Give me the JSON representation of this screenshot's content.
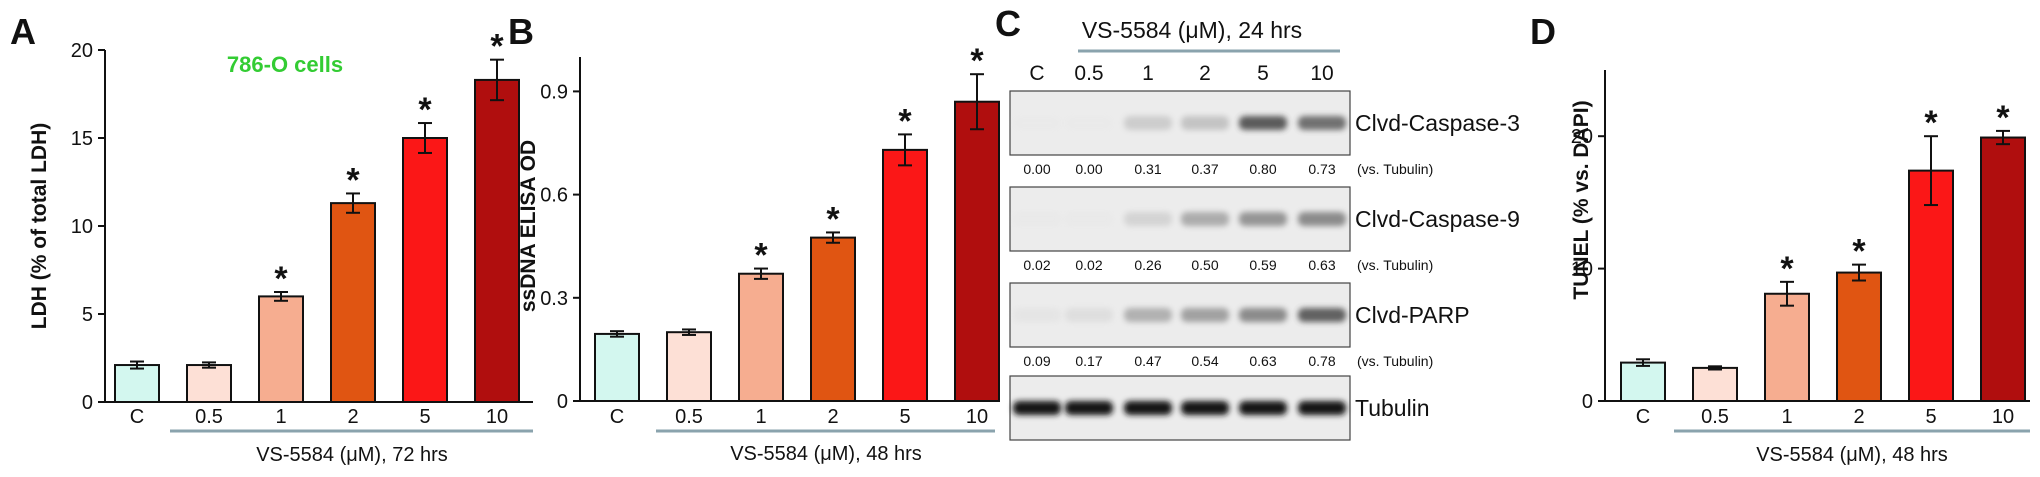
{
  "colors": [
    "#d3f7ef",
    "#fde0d6",
    "#f6ad90",
    "#e05512",
    "#fb1717",
    "#b00e0e"
  ],
  "chart_data": [
    {
      "type": "bar",
      "panel": "A",
      "annotation": "786-O cells",
      "ylabel": "LDH (% of total LDH)",
      "xlabel": "VS-5584 (μM), 72 hrs",
      "categories": [
        "C",
        "0.5",
        "1",
        "2",
        "5",
        "10"
      ],
      "values": [
        2.1,
        2.1,
        6.0,
        11.3,
        15.0,
        18.3
      ],
      "errors": [
        0.2,
        0.15,
        0.25,
        0.55,
        0.85,
        1.15
      ],
      "significant": [
        false,
        false,
        true,
        true,
        true,
        true
      ],
      "marker": "*",
      "ylim": [
        0,
        20
      ],
      "yticks": [
        "0",
        "5",
        "10",
        "15",
        "20"
      ],
      "ytick_values": [
        0,
        5,
        10,
        15,
        20
      ]
    },
    {
      "type": "bar",
      "panel": "B",
      "ylabel": "ssDNA ELISA OD",
      "xlabel": "VS-5584 (μM), 48 hrs",
      "categories": [
        "C",
        "0.5",
        "1",
        "2",
        "5",
        "10"
      ],
      "values": [
        0.195,
        0.2,
        0.37,
        0.475,
        0.73,
        0.87
      ],
      "errors": [
        0.008,
        0.008,
        0.015,
        0.015,
        0.045,
        0.08
      ],
      "significant": [
        false,
        false,
        true,
        true,
        true,
        true
      ],
      "marker": "*",
      "ylim": [
        0,
        1.0
      ],
      "yticks": [
        "0",
        "0.3",
        "0.6",
        "0.9"
      ],
      "ytick_values": [
        0,
        0.3,
        0.6,
        0.9
      ]
    },
    {
      "type": "bar",
      "panel": "D",
      "ylabel": "TUNEL (% vs. DAPI)",
      "xlabel": "VS-5584 (μM), 48 hrs",
      "categories": [
        "C",
        "0.5",
        "1",
        "2",
        "5",
        "10"
      ],
      "values": [
        2.9,
        2.5,
        8.1,
        9.7,
        17.4,
        19.9
      ],
      "errors": [
        0.25,
        0.12,
        0.9,
        0.6,
        2.6,
        0.5
      ],
      "significant": [
        false,
        false,
        true,
        true,
        true,
        true
      ],
      "marker": "*",
      "ylim": [
        0,
        25
      ],
      "yticks": [
        "0",
        "10",
        "20"
      ],
      "ytick_values": [
        0,
        10,
        20
      ]
    }
  ],
  "blot": {
    "panel": "C",
    "header": "VS-5584 (μM), 24 hrs",
    "lanes": [
      "C",
      "0.5",
      "1",
      "2",
      "5",
      "10"
    ],
    "rows": [
      {
        "label": "Clvd-Caspase-3",
        "intensities": [
          0.0,
          0.0,
          0.31,
          0.37,
          0.8,
          0.73
        ],
        "quant": [
          "0.00",
          "0.00",
          "0.31",
          "0.37",
          "0.80",
          "0.73"
        ],
        "quant_suffix": "(vs. Tubulin)"
      },
      {
        "label": "Clvd-Caspase-9",
        "intensities": [
          0.02,
          0.02,
          0.26,
          0.5,
          0.59,
          0.63
        ],
        "quant": [
          "0.02",
          "0.02",
          "0.26",
          "0.50",
          "0.59",
          "0.63"
        ],
        "quant_suffix": "(vs. Tubulin)"
      },
      {
        "label": "Clvd-PARP",
        "intensities": [
          0.09,
          0.17,
          0.47,
          0.54,
          0.63,
          0.78
        ],
        "quant": [
          "0.09",
          "0.17",
          "0.47",
          "0.54",
          "0.63",
          "0.78"
        ],
        "quant_suffix": "(vs. Tubulin)"
      },
      {
        "label": "Tubulin",
        "intensities": [
          1.0,
          1.0,
          1.0,
          1.0,
          1.0,
          1.0
        ],
        "quant": [],
        "quant_suffix": ""
      }
    ]
  }
}
